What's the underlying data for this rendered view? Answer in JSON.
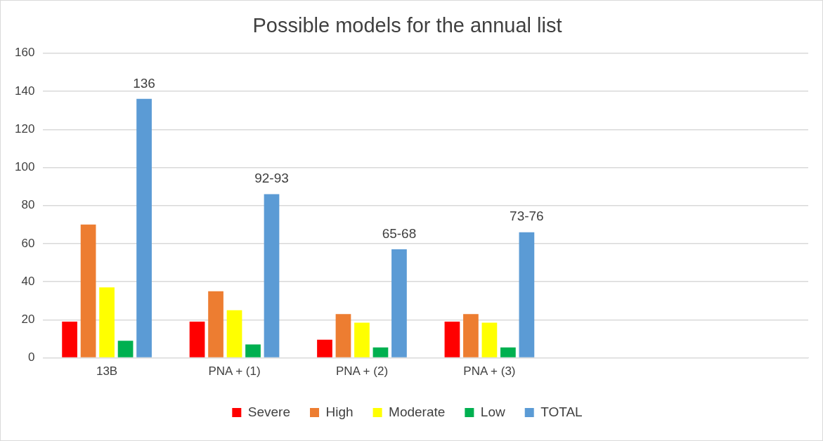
{
  "chart_data": {
    "type": "bar",
    "title": "Possible models for the annual list",
    "categories": [
      "13B",
      "PNA + (1)",
      "PNA + (2)",
      "PNA + (3)",
      null,
      null
    ],
    "series": [
      {
        "name": "Severe",
        "color": "#ff0000",
        "values": [
          19,
          19,
          9.5,
          19,
          null,
          null
        ]
      },
      {
        "name": "High",
        "color": "#ed7d31",
        "values": [
          70,
          35,
          23,
          23,
          null,
          null
        ]
      },
      {
        "name": "Moderate",
        "color": "#ffff00",
        "values": [
          37,
          25,
          18.5,
          18.5,
          null,
          null
        ]
      },
      {
        "name": "Low",
        "color": "#00b050",
        "values": [
          9,
          7,
          5.5,
          5.5,
          null,
          null
        ]
      },
      {
        "name": "TOTAL",
        "color": "#5b9bd5",
        "values": [
          136,
          86,
          57,
          66,
          null,
          null
        ],
        "value_labels": [
          "136",
          "92-93",
          "65-68",
          "73-76",
          null,
          null
        ]
      }
    ],
    "ylim": [
      0,
      160
    ],
    "yticks": [
      0,
      20,
      40,
      60,
      80,
      100,
      120,
      140,
      160
    ],
    "grid": "y",
    "legend": "bottom"
  }
}
